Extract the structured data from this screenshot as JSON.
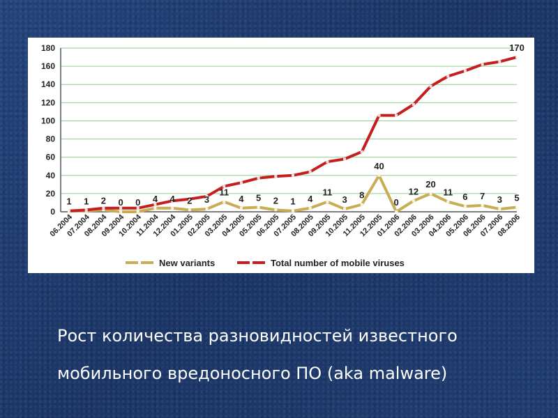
{
  "colors": {
    "new_variants": "#c9ad55",
    "total": "#c41e1e",
    "grid": "#8fd08f"
  },
  "chart_data": {
    "type": "line",
    "categories": [
      "06.2004",
      "07.2004",
      "08.2004",
      "09.2004",
      "10.2004",
      "11.2004",
      "12.2004",
      "01.2005",
      "02.2005",
      "03.2005",
      "04.2005",
      "05.2005",
      "06.2005",
      "07.2005",
      "08.2005",
      "09.2005",
      "10.2005",
      "11.2005",
      "12.2005",
      "01.2006",
      "02.2006",
      "03.2006",
      "04.2006",
      "05.2006",
      "06.2006",
      "07.2006",
      "08.2006"
    ],
    "series": [
      {
        "name": "New variants",
        "values": [
          1,
          1,
          2,
          0,
          0,
          4,
          4,
          2,
          3,
          11,
          4,
          5,
          2,
          1,
          4,
          11,
          3,
          8,
          40,
          0,
          12,
          20,
          11,
          6,
          7,
          3,
          5
        ]
      },
      {
        "name": "Total number of mobile viruses",
        "values": [
          1,
          2,
          4,
          4,
          4,
          8,
          12,
          14,
          17,
          28,
          32,
          37,
          39,
          40,
          44,
          55,
          58,
          66,
          106,
          106,
          118,
          138,
          149,
          155,
          162,
          165,
          170
        ]
      }
    ],
    "y_ticks": [
      "0",
      "20",
      "40",
      "60",
      "80",
      "100",
      "120",
      "140",
      "160",
      "180"
    ],
    "ylim": [
      0,
      180
    ],
    "grid": true,
    "legend_position": "bottom",
    "total_end_label": "170"
  },
  "caption": {
    "line1": "Рост количества разновидностей известного",
    "line2": "мобильного вредоносного ПО  (aka malware)"
  }
}
